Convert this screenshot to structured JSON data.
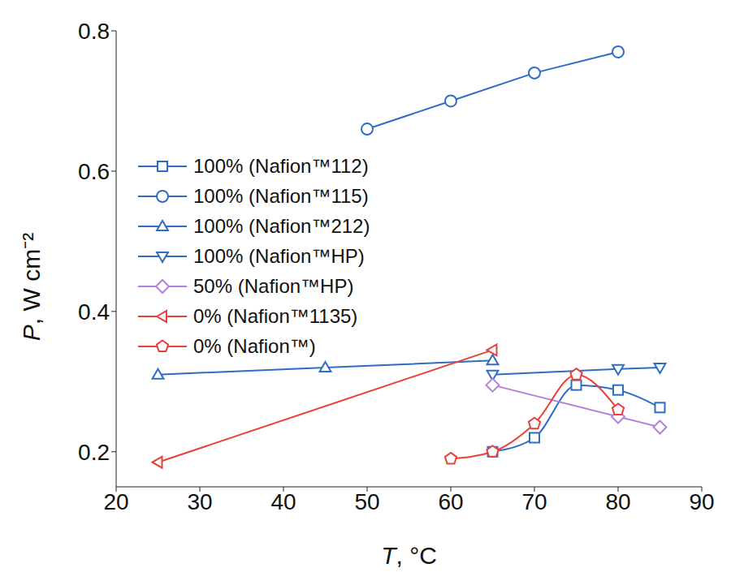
{
  "chart_data": {
    "type": "line",
    "x_label": "T, °C",
    "y_label": "P, W cm⁻²",
    "xlim": [
      20,
      90
    ],
    "xticks": [
      20,
      30,
      40,
      50,
      60,
      70,
      80,
      90
    ],
    "ylim": [
      0.15,
      0.8
    ],
    "yticks": [
      0.2,
      0.4,
      0.6,
      0.8
    ],
    "series": [
      {
        "name": "100% (Nafion™112)",
        "color": "#2f6cc4",
        "marker": "square",
        "line_style": "smooth",
        "x": [
          65,
          70,
          75,
          80,
          85
        ],
        "values": [
          0.2,
          0.22,
          0.295,
          0.288,
          0.263
        ]
      },
      {
        "name": "100% (Nafion™115)",
        "color": "#2f6cc4",
        "marker": "circle",
        "line_style": "solid",
        "x": [
          50,
          60,
          70,
          80
        ],
        "values": [
          0.66,
          0.7,
          0.74,
          0.77
        ]
      },
      {
        "name": "100% (Nafion™212)",
        "color": "#2f6cc4",
        "marker": "triangle",
        "line_style": "solid",
        "x": [
          25,
          45,
          65
        ],
        "values": [
          0.31,
          0.32,
          0.33
        ]
      },
      {
        "name": "100% (Nafion™HP)",
        "color": "#2f6cc4",
        "marker": "triangle-down",
        "line_style": "solid",
        "x": [
          65,
          80,
          85
        ],
        "values": [
          0.31,
          0.318,
          0.32
        ]
      },
      {
        "name": "50% (Nafion™HP)",
        "color": "#b77fe0",
        "marker": "diamond",
        "line_style": "solid",
        "x": [
          65,
          80,
          85
        ],
        "values": [
          0.295,
          0.25,
          0.235
        ]
      },
      {
        "name": "0% (Nafion™1135)",
        "color": "#e8403a",
        "marker": "triangle-left",
        "line_style": "solid",
        "x": [
          25,
          65
        ],
        "values": [
          0.185,
          0.345
        ]
      },
      {
        "name": "0% (Nafion™)",
        "color": "#e8403a",
        "marker": "pentagon",
        "line_style": "smooth",
        "x": [
          60,
          65,
          70,
          75,
          80
        ],
        "values": [
          0.19,
          0.2,
          0.24,
          0.31,
          0.26
        ]
      }
    ]
  }
}
